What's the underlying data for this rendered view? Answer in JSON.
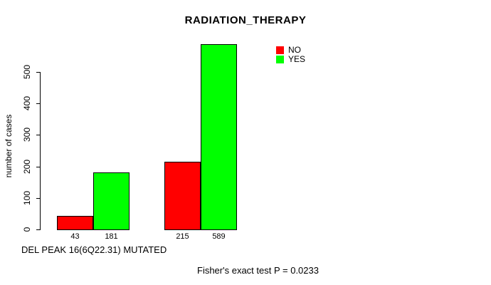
{
  "chart_data": {
    "type": "bar",
    "title": "RADIATION_THERAPY",
    "ylabel": "number of cases",
    "xlabel": "DEL PEAK 16(6Q22.31) MUTATED",
    "annotation": "Fisher's exact test P = 0.0233",
    "ylim": [
      0,
      500
    ],
    "yticks": [
      0,
      100,
      200,
      300,
      400,
      500
    ],
    "grid": false,
    "legend_position": "topright",
    "background": "#ffffff",
    "axis_color": "#000000",
    "series": [
      {
        "name": "NO",
        "color": "#ff0000"
      },
      {
        "name": "YES",
        "color": "#00ff00"
      }
    ],
    "groups": [
      {
        "values": [
          43,
          181
        ],
        "bar_labels": [
          "43",
          "181"
        ]
      },
      {
        "values": [
          215,
          589
        ],
        "bar_labels": [
          "215",
          "589"
        ]
      }
    ]
  }
}
